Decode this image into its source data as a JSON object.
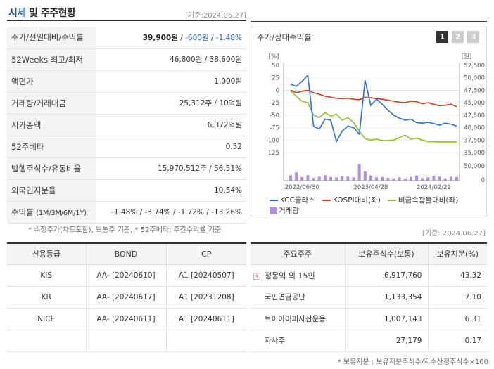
{
  "header": {
    "title_a": "시세",
    "title_b": " 및 주주현황",
    "date": "[기준:2024.06.27]"
  },
  "info": [
    {
      "label": "주가/전일대비/수익률",
      "v1": "39,900원",
      "v2": " / ",
      "v3": "-600원",
      "v4": " / ",
      "v5": "-1.48%"
    },
    {
      "label": "52Weeks 최고/최저",
      "value": "46,800원 / 38,600원"
    },
    {
      "label": "액면가",
      "value": "1,000원"
    },
    {
      "label": "거래량/거래대금",
      "value": "25,312주 / 10억원"
    },
    {
      "label": "시가총액",
      "value": "6,372억원"
    },
    {
      "label": "52주베타",
      "value": "0.52"
    },
    {
      "label": "발행주식수/유동비율",
      "value": "15,970,512주 / 56.51%"
    },
    {
      "label": "외국인지분율",
      "value": "10.54%"
    },
    {
      "label": "수익률",
      "label_sub": "(1M/3M/6M/1Y)",
      "value": "-1.48% / -3.74% / -1.72% / -13.26%"
    }
  ],
  "note1": "* 수정주가(차트포함), 보통주 기준, * 52주베타: 주간수익률 기준",
  "note_date": "[기준: 2024.06.27]",
  "chart": {
    "title": "주가/상대수익률",
    "tabs": [
      "1",
      "2",
      "3"
    ],
    "left_unit": "[%]",
    "right_unit": "[원]",
    "left_ticks": [
      "50",
      "25",
      "0",
      "-25",
      "-50",
      "-75",
      "-100",
      "-125"
    ],
    "right_ticks": [
      "52,500",
      "50,000",
      "47,500",
      "45,000",
      "42,500",
      "40,000",
      "37,500",
      "35,000"
    ],
    "vol_ticks": [
      "50,000",
      "0"
    ],
    "x_ticks": [
      "2022/06/30",
      "2023/04/28",
      "2024/02/29"
    ],
    "legend": {
      "kcc": "KCC글라스",
      "kospi": "KOSPI대비(좌)",
      "metal": "비금속광물대비(좌)",
      "volume": "거래량"
    },
    "colors": {
      "kcc": "#2a6fd6",
      "kospi": "#c8401c",
      "metal": "#8cc22a",
      "volume": "#b28be6"
    }
  },
  "chart_data": {
    "type": "line",
    "series": [
      {
        "name": "KCC글라스",
        "values": [
          12,
          8,
          18,
          30,
          -72,
          -78,
          -58,
          -60,
          -103,
          -82,
          -72,
          -75,
          -88,
          20,
          -30,
          -18,
          -28,
          -40,
          -50,
          -56,
          -60,
          -58,
          -65,
          -66,
          -64,
          -67,
          -70,
          -66,
          -68,
          -72
        ]
      },
      {
        "name": "KOSPI대비(좌)",
        "values": [
          0,
          -5,
          -2,
          0,
          -5,
          -8,
          -12,
          -14,
          -16,
          -17,
          -16,
          -18,
          -19,
          -14,
          -15,
          -17,
          -18,
          -20,
          -22,
          -24,
          -25,
          -22,
          -23,
          -27,
          -25,
          -28,
          -31,
          -30,
          -28,
          -33
        ]
      },
      {
        "name": "비금속광물대비(좌)",
        "values": [
          -2,
          -12,
          -22,
          -25,
          -50,
          -55,
          -45,
          -52,
          -48,
          -60,
          -55,
          -65,
          -82,
          -97,
          -100,
          -98,
          -101,
          -101,
          -100,
          -95,
          -90,
          -98,
          -96,
          -100,
          -103,
          -103,
          -104,
          -104,
          -104,
          -104
        ]
      },
      {
        "name": "거래량",
        "values": [
          28,
          45,
          20,
          30,
          15,
          22,
          30,
          20,
          18,
          25,
          22,
          18,
          90,
          50,
          28,
          18,
          20,
          15,
          12,
          18,
          10,
          20,
          28,
          14,
          18,
          26,
          22,
          12,
          22,
          20
        ]
      }
    ],
    "x_labels": [
      "2022/06/30",
      "2023/04/28",
      "2024/02/29"
    ],
    "ylim_left": [
      -125,
      50
    ],
    "ylim_right": [
      35000,
      52500
    ]
  },
  "credit": {
    "headers": [
      "신용등급",
      "BOND",
      "CP"
    ],
    "rows": [
      [
        "KIS",
        "AA-  [20240610]",
        "A1  [20240507]"
      ],
      [
        "KR",
        "AA-  [20240617]",
        "A1  [20231208]"
      ],
      [
        "NICE",
        "AA-  [20240611]",
        "A1  [20240611]"
      ],
      [
        "",
        "",
        ""
      ]
    ]
  },
  "holders": {
    "headers": [
      "주요주주",
      "보유주식수(보통)",
      "보유지분(%)"
    ],
    "rows": [
      [
        "정몽익 외 15인",
        "6,917,760",
        "43.32"
      ],
      [
        "국민연금공단",
        "1,133,354",
        "7.10"
      ],
      [
        "브이아이피자산운용",
        "1,007,143",
        "6.31"
      ],
      [
        "자사주",
        "27,179",
        "0.17"
      ]
    ]
  },
  "note2": "* 보유지분 : 보유지분주식수/지수산정주식수×100"
}
